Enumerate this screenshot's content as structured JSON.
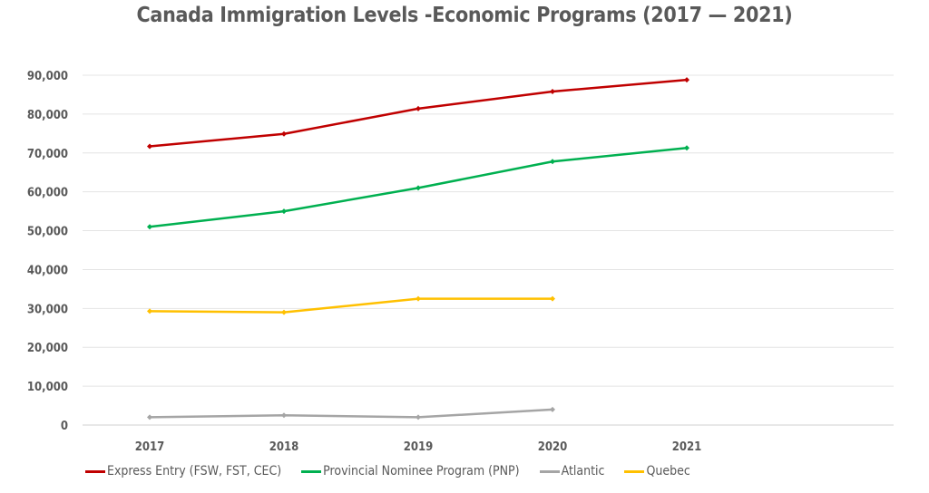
{
  "chart_data": {
    "type": "line",
    "title": "Canada Immigration Levels -Economic Programs (2017 — 2021)",
    "categories": [
      "2017",
      "2018",
      "2019",
      "2020",
      "2021"
    ],
    "ylim": [
      0,
      90000
    ],
    "yticks": [
      "0",
      "10,000",
      "20,000",
      "30,000",
      "40,000",
      "50,000",
      "60,000",
      "70,000",
      "80,000",
      "90,000"
    ],
    "grid": true,
    "legend": "bottom",
    "series": [
      {
        "name": "Express Entry (FSW, FST, CEC)",
        "color": "#C00000",
        "values": [
          71700,
          74900,
          81400,
          85800,
          88800
        ]
      },
      {
        "name": "Provincial Nominee Program (PNP)",
        "color": "#00B050",
        "values": [
          51000,
          55000,
          61000,
          67800,
          71300
        ]
      },
      {
        "name": "Atlantic",
        "color": "#A5A5A5",
        "values": [
          2000,
          2500,
          2000,
          4000,
          null
        ]
      },
      {
        "name": "Quebec",
        "color": "#FFC000",
        "values": [
          29300,
          29000,
          32500,
          32500,
          null
        ]
      }
    ]
  }
}
